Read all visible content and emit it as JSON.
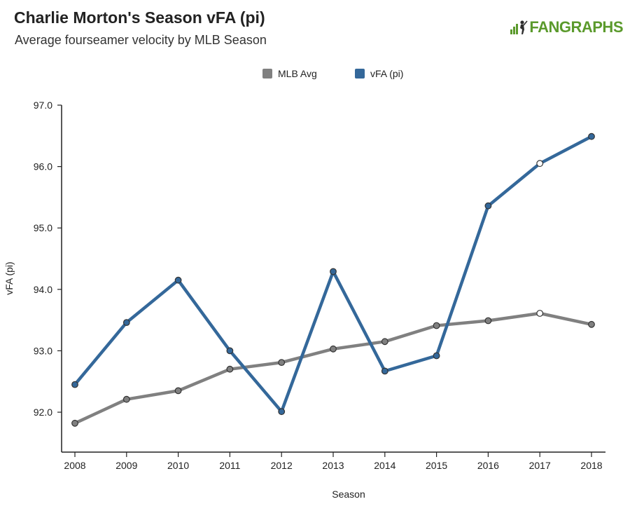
{
  "header": {
    "title": "Charlie Morton's Season vFA (pi)",
    "subtitle": "Average fourseamer velocity by MLB Season",
    "logo_text": "FANGRAPHS"
  },
  "colors": {
    "mlb_avg": "#808080",
    "vfa": "#34689a",
    "logo": "#5b9a2c"
  },
  "chart_data": {
    "type": "line",
    "title": "Charlie Morton's Season vFA (pi)",
    "subtitle": "Average fourseamer velocity by MLB Season",
    "xlabel": "Season",
    "ylabel": "vFA (pi)",
    "x": [
      "2008",
      "2009",
      "2010",
      "2011",
      "2012",
      "2013",
      "2014",
      "2015",
      "2016",
      "2017",
      "2018"
    ],
    "ylim": [
      91.35,
      97.0
    ],
    "yticks": [
      "92.0",
      "93.0",
      "94.0",
      "95.0",
      "96.0",
      "97.0"
    ],
    "legend_position": "top-center",
    "grid": false,
    "series": [
      {
        "name": "MLB Avg",
        "color": "#808080",
        "values": [
          91.82,
          92.21,
          92.35,
          92.7,
          92.81,
          93.03,
          93.15,
          93.41,
          93.49,
          93.61,
          93.43
        ],
        "hollow_points": [
          9
        ]
      },
      {
        "name": "vFA (pi)",
        "color": "#34689a",
        "values": [
          92.45,
          93.46,
          94.15,
          93.0,
          92.01,
          94.29,
          92.67,
          92.92,
          95.36,
          96.05,
          96.49
        ],
        "hollow_points": [
          9
        ]
      }
    ]
  }
}
